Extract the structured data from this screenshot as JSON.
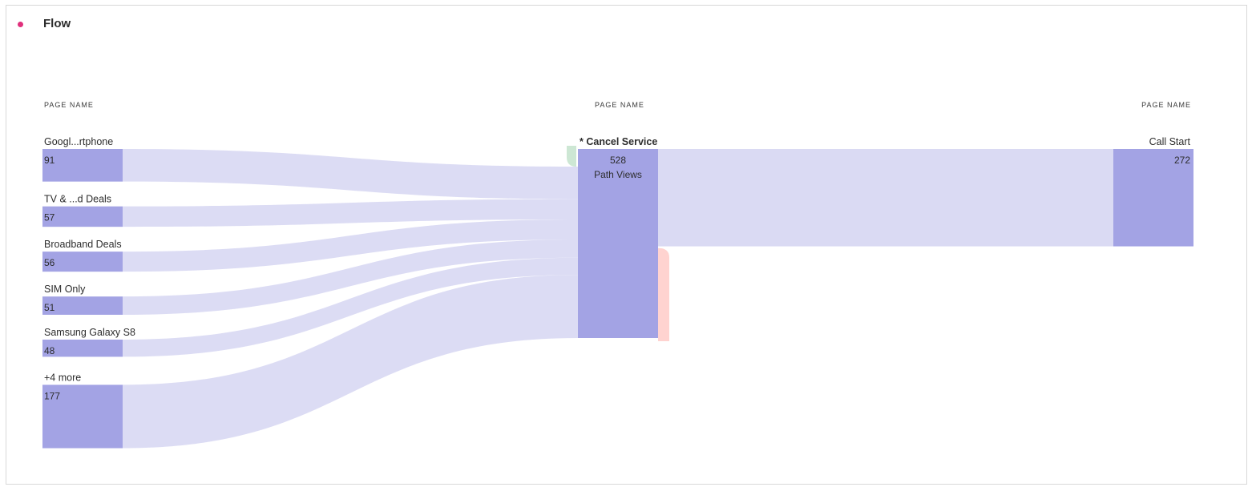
{
  "panel": {
    "title": "Flow",
    "indicator_color": "#e0307c"
  },
  "columns": [
    {
      "header": "PAGE NAME"
    },
    {
      "header": "PAGE NAME"
    },
    {
      "header": "PAGE NAME"
    }
  ],
  "colors": {
    "node": "#a3a3e4",
    "link": "#dadaf3",
    "entry_marker": "#cde7d4",
    "exit_marker": "#ffd3d0",
    "text": "#2c2c2c"
  },
  "chart_data": {
    "type": "flow",
    "metric_label": "Path Views",
    "focus": {
      "name": "* Cancel Service",
      "value": 528
    },
    "previous": [
      {
        "name": "Googl...rtphone",
        "value": 91
      },
      {
        "name": "TV & ...d Deals",
        "value": 57
      },
      {
        "name": "Broadband Deals",
        "value": 56
      },
      {
        "name": "SIM Only",
        "value": 51
      },
      {
        "name": "Samsung Galaxy S8",
        "value": 48
      },
      {
        "name": "+4 more",
        "value": 177
      }
    ],
    "next": [
      {
        "name": "Call Start",
        "value": 272
      }
    ]
  }
}
